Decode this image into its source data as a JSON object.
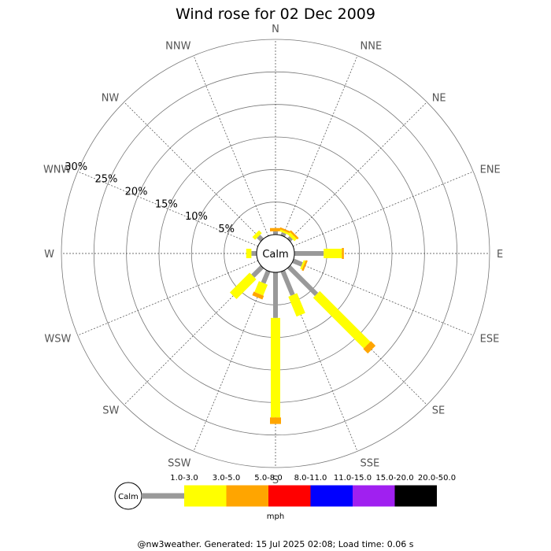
{
  "chart_data": {
    "type": "wind-rose",
    "title": "Wind rose for 02 Dec 2009",
    "center_label": "Calm",
    "directions": [
      "N",
      "NNE",
      "NE",
      "ENE",
      "E",
      "ESE",
      "SE",
      "SSE",
      "S",
      "SSW",
      "SW",
      "WSW",
      "W",
      "WNW",
      "NW",
      "NNW"
    ],
    "radial_ticks": [
      5,
      10,
      15,
      20,
      25,
      30
    ],
    "radial_tick_labels": [
      "5%",
      "10%",
      "15%",
      "20%",
      "25%",
      "30%"
    ],
    "radial_max": 30,
    "speed_bins": [
      {
        "label": "1.0-3.0",
        "color": "#999999"
      },
      {
        "label": "3.0-5.0",
        "color": "#ffff00"
      },
      {
        "label": "5.0-8.0",
        "color": "#ffa500"
      },
      {
        "label": "8.0-11.0",
        "color": "#ff0000"
      },
      {
        "label": "11.0-15.0",
        "color": "#0000ff"
      },
      {
        "label": "15.0-20.0",
        "color": "#a020f0"
      },
      {
        "label": "20.0-50.0",
        "color": "#000000"
      }
    ],
    "series": [
      {
        "direction": "N",
        "values": [
          0.5,
          0.0,
          0.5,
          0,
          0,
          0,
          0
        ]
      },
      {
        "direction": "NNE",
        "values": [
          0.5,
          0.3,
          0.3,
          0,
          0,
          0,
          0
        ]
      },
      {
        "direction": "NE",
        "values": [
          0.5,
          0.5,
          0.3,
          0,
          0,
          0,
          0
        ]
      },
      {
        "direction": "ENE",
        "values": [
          0.0,
          0.0,
          0.0,
          0,
          0,
          0,
          0
        ]
      },
      {
        "direction": "E",
        "values": [
          4.5,
          2.8,
          0.3,
          0,
          0,
          0,
          0
        ]
      },
      {
        "direction": "ESE",
        "values": [
          1.5,
          0.3,
          0.3,
          0,
          0,
          0,
          0
        ]
      },
      {
        "direction": "SE",
        "values": [
          6.0,
          11.0,
          1.0,
          0,
          0,
          0,
          0
        ]
      },
      {
        "direction": "SSE",
        "values": [
          4.0,
          3.3,
          0.0,
          0,
          0,
          0,
          0
        ]
      },
      {
        "direction": "S",
        "values": [
          7.0,
          15.3,
          1.0,
          0,
          0,
          0,
          0
        ]
      },
      {
        "direction": "SSW",
        "values": [
          2.0,
          1.8,
          0.6,
          0,
          0,
          0,
          0
        ]
      },
      {
        "direction": "SW",
        "values": [
          2.0,
          4.3,
          0.0,
          0,
          0,
          0,
          0
        ]
      },
      {
        "direction": "WSW",
        "values": [
          0.0,
          0.0,
          0.0,
          0,
          0,
          0,
          0
        ]
      },
      {
        "direction": "W",
        "values": [
          0.8,
          0.8,
          0.0,
          0,
          0,
          0,
          0
        ]
      },
      {
        "direction": "WNW",
        "values": [
          0.0,
          0.0,
          0.0,
          0,
          0,
          0,
          0
        ]
      },
      {
        "direction": "NW",
        "values": [
          0.8,
          0.6,
          0.0,
          0,
          0,
          0,
          0
        ]
      },
      {
        "direction": "NNW",
        "values": [
          0.0,
          0.0,
          0.0,
          0,
          0,
          0,
          0
        ]
      }
    ],
    "legend_unit": "mph",
    "footer": "@nw3weather. Generated: 15 Jul 2025 02:08; Load time: 0.06 s"
  }
}
